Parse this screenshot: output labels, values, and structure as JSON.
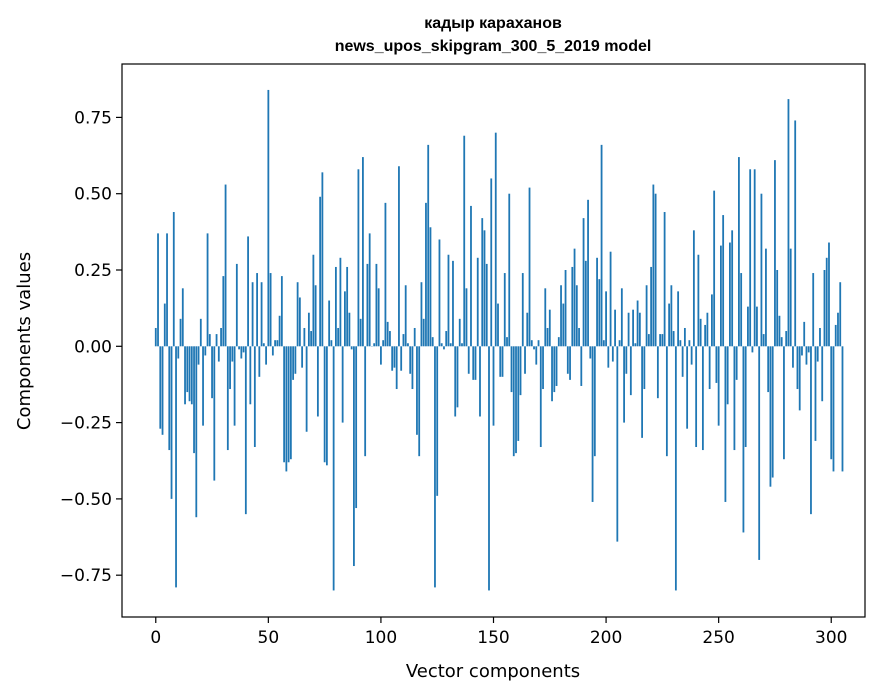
{
  "chart_data": {
    "type": "bar",
    "title": "кадыр караханов",
    "subtitle": "news_upos_skipgram_300_5_2019 model",
    "xlabel": "Vector components",
    "ylabel": "Components values",
    "xlim": [
      -15,
      315
    ],
    "ylim": [
      -0.887,
      0.925
    ],
    "xticks": [
      0,
      50,
      100,
      150,
      200,
      250,
      300
    ],
    "yticks": [
      -0.75,
      -0.5,
      -0.25,
      0.0,
      0.25,
      0.5,
      0.75
    ],
    "ytick_labels": [
      "−0.75",
      "−0.50",
      "−0.25",
      "0.00",
      "0.25",
      "0.50",
      "0.75"
    ],
    "grid": false,
    "bar_color": "#1f77b4",
    "values": [
      0.06,
      0.37,
      -0.27,
      -0.29,
      0.14,
      0.37,
      -0.34,
      -0.5,
      0.44,
      -0.79,
      -0.04,
      0.09,
      0.19,
      -0.19,
      -0.15,
      -0.18,
      -0.19,
      -0.35,
      -0.56,
      -0.06,
      0.09,
      -0.26,
      -0.03,
      0.37,
      0.04,
      -0.17,
      -0.44,
      0.04,
      -0.05,
      0.06,
      0.23,
      0.53,
      -0.34,
      -0.14,
      -0.05,
      -0.26,
      0.27,
      -0.01,
      -0.04,
      -0.02,
      -0.55,
      0.36,
      -0.19,
      0.21,
      -0.33,
      0.24,
      -0.1,
      0.21,
      0.01,
      -0.06,
      0.84,
      0.24,
      -0.03,
      0.02,
      0.02,
      0.1,
      0.23,
      -0.38,
      -0.41,
      -0.38,
      -0.37,
      -0.11,
      -0.09,
      0.21,
      0.16,
      -0.07,
      0.06,
      -0.28,
      0.11,
      0.05,
      0.3,
      0.2,
      -0.23,
      0.49,
      0.57,
      -0.38,
      -0.39,
      0.15,
      0.02,
      -0.8,
      0.26,
      0.06,
      0.29,
      -0.25,
      0.18,
      0.26,
      0.11,
      -0.01,
      -0.72,
      -0.53,
      0.58,
      0.09,
      0.62,
      -0.36,
      0.27,
      0.37,
      0.0,
      0.01,
      0.27,
      0.19,
      -0.06,
      0.02,
      0.47,
      0.08,
      0.05,
      -0.08,
      -0.07,
      -0.14,
      0.59,
      -0.08,
      0.04,
      0.2,
      0.01,
      -0.09,
      -0.14,
      0.06,
      -0.29,
      -0.36,
      0.21,
      0.09,
      0.47,
      0.66,
      0.39,
      0.03,
      -0.79,
      -0.49,
      0.35,
      0.01,
      -0.01,
      0.05,
      0.3,
      0.01,
      0.28,
      -0.23,
      -0.2,
      0.09,
      0.01,
      0.69,
      0.19,
      -0.09,
      0.46,
      -0.11,
      -0.11,
      0.29,
      -0.23,
      0.42,
      0.38,
      0.27,
      -0.8,
      0.55,
      -0.26,
      0.7,
      0.14,
      -0.1,
      -0.1,
      0.24,
      0.03,
      0.5,
      -0.15,
      -0.36,
      -0.35,
      -0.31,
      -0.16,
      0.24,
      -0.09,
      0.11,
      0.52,
      0.02,
      -0.01,
      -0.06,
      0.02,
      -0.33,
      -0.14,
      0.19,
      0.06,
      0.12,
      -0.18,
      -0.15,
      -0.13,
      0.03,
      0.2,
      0.14,
      0.25,
      -0.09,
      -0.11,
      0.26,
      0.32,
      0.2,
      0.06,
      -0.13,
      0.42,
      0.28,
      0.48,
      -0.04,
      -0.51,
      -0.36,
      0.29,
      0.22,
      0.66,
      0.02,
      0.18,
      -0.07,
      0.31,
      -0.05,
      0.12,
      -0.64,
      0.02,
      0.19,
      -0.25,
      -0.09,
      0.11,
      -0.16,
      0.12,
      0.01,
      0.15,
      0.11,
      -0.3,
      -0.14,
      0.2,
      0.04,
      0.26,
      0.53,
      0.5,
      -0.17,
      0.04,
      0.04,
      0.44,
      -0.36,
      0.14,
      0.2,
      0.05,
      -0.8,
      0.18,
      0.02,
      -0.1,
      0.06,
      -0.27,
      0.02,
      -0.06,
      0.38,
      -0.33,
      0.3,
      0.09,
      -0.34,
      0.07,
      0.11,
      -0.14,
      0.17,
      0.51,
      -0.12,
      -0.26,
      0.33,
      0.43,
      -0.51,
      -0.19,
      0.34,
      0.38,
      -0.34,
      -0.11,
      0.62,
      0.24,
      -0.61,
      -0.33,
      0.13,
      0.58,
      -0.02,
      0.58,
      0.13,
      -0.7,
      0.5,
      0.04,
      0.32,
      -0.15,
      -0.46,
      -0.43,
      0.61,
      0.25,
      0.1,
      0.03,
      -0.37,
      0.05,
      0.81,
      0.32,
      -0.07,
      0.74,
      -0.14,
      -0.21,
      -0.03,
      0.08,
      -0.06,
      -0.02,
      -0.55,
      0.24,
      -0.31,
      -0.05,
      0.06,
      -0.18,
      0.25,
      0.29,
      0.34,
      -0.37,
      -0.41,
      0.07,
      0.11,
      0.21,
      -0.41
    ]
  }
}
